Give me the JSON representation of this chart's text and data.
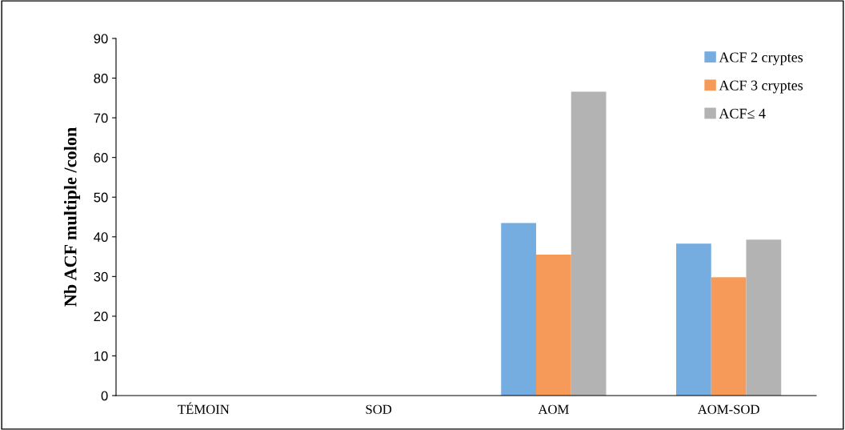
{
  "chart_data": {
    "type": "bar",
    "ylabel": "Nb ACF multiple /colon",
    "categories": [
      "TÉMOIN",
      "SOD",
      "AOM",
      "AOM-SOD"
    ],
    "series": [
      {
        "name": "ACF 2 cryptes",
        "color": "#75ade0",
        "values": [
          0,
          0,
          43.5,
          38.3
        ]
      },
      {
        "name": "ACF 3 cryptes",
        "color": "#f59a58",
        "values": [
          0,
          0,
          35.5,
          29.8
        ]
      },
      {
        "name": "ACF≤ 4",
        "color": "#b3b3b3",
        "values": [
          0,
          0,
          76.6,
          39.3
        ]
      }
    ],
    "ylim": [
      0,
      90
    ],
    "yticks": [
      0,
      10,
      20,
      30,
      40,
      50,
      60,
      70,
      80,
      90
    ],
    "grid": false,
    "legend": "top right"
  }
}
